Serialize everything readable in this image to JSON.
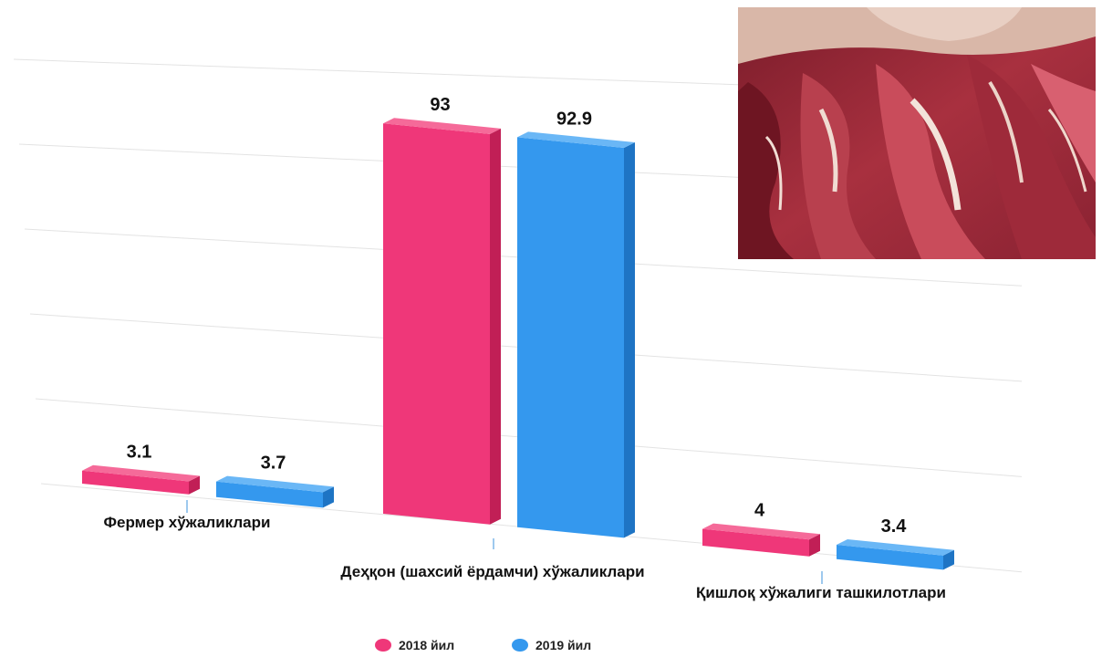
{
  "chart_data": {
    "type": "bar",
    "categories": [
      "Фермер хўжаликлари",
      "Деҳқон (шахсий ёрдамчи) хўжаликлари",
      "Қишлоқ хўжалиги ташкилотлари"
    ],
    "series": [
      {
        "name": "2018 йил",
        "values": [
          3.1,
          93,
          4
        ],
        "labels": [
          "3.1",
          "93",
          "4"
        ]
      },
      {
        "name": "2019 йил",
        "values": [
          3.7,
          92.9,
          3.4
        ],
        "labels": [
          "3.7",
          "92.9",
          "3.4"
        ]
      }
    ],
    "ylim": [
      0,
      100
    ],
    "grid": true,
    "legend_position": "bottom-center",
    "colors": {
      "series_2018": "#ef3779",
      "series_2019": "#3498ee"
    }
  }
}
